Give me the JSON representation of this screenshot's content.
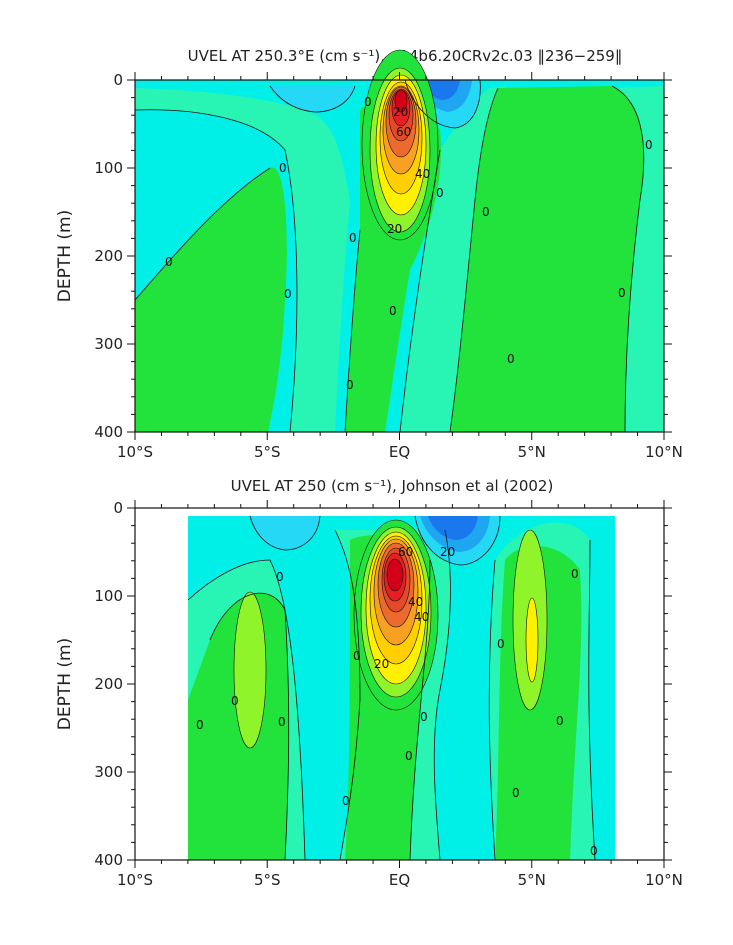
{
  "chart_data": [
    {
      "type": "heatmap",
      "title": "UVEL AT 250.3°E (cm s⁻¹), g14b6.20CRv2c.03 ‖236−259‖",
      "xlabel": "",
      "ylabel": "DEPTH (m)",
      "x_ticks": [
        "10°S",
        "5°S",
        "EQ",
        "5°N",
        "10°N"
      ],
      "y_ticks": [
        "0",
        "100",
        "200",
        "300",
        "400"
      ],
      "xlim": [
        -10,
        10
      ],
      "ylim": [
        400,
        0
      ],
      "contour_labels": [
        "20",
        "60",
        "40",
        "20",
        "0",
        "0",
        "0",
        "0",
        "0",
        "0",
        "0",
        "0",
        "0",
        "0",
        "0",
        "0"
      ],
      "features": {
        "core_lat": 0,
        "core_depth": 80,
        "core_max": 80
      }
    },
    {
      "type": "heatmap",
      "title": "UVEL AT 250 (cm s⁻¹), Johnson et al (2002)",
      "xlabel": "",
      "ylabel": "DEPTH (m)",
      "x_ticks": [
        "10°S",
        "5°S",
        "EQ",
        "5°N",
        "10°N"
      ],
      "y_ticks": [
        "0",
        "100",
        "200",
        "300",
        "400"
      ],
      "xlim": [
        -10,
        10
      ],
      "ylim": [
        400,
        0
      ],
      "contour_labels": [
        "60",
        "40",
        "20",
        "20",
        "40",
        "0",
        "0",
        "0",
        "0",
        "0",
        "0",
        "0",
        "0",
        "0",
        "0",
        "0",
        "0",
        "0"
      ],
      "features": {
        "core_lat": -0.2,
        "core_depth": 75,
        "core_max": 80
      }
    }
  ],
  "colors": {
    "green": "#22e33c",
    "cyan": "#00f0e8",
    "teal": "#28f4b4",
    "lightblue": "#25d8f6",
    "blue": "#1ea6f0",
    "deepblue": "#1a78ee",
    "yellowgreen": "#8ff42a",
    "yellow": "#fff000",
    "gold": "#ffcf00",
    "orange": "#f7a021",
    "darkorange": "#ec6a2d",
    "red": "#e51f24",
    "darkred": "#d4001a"
  }
}
